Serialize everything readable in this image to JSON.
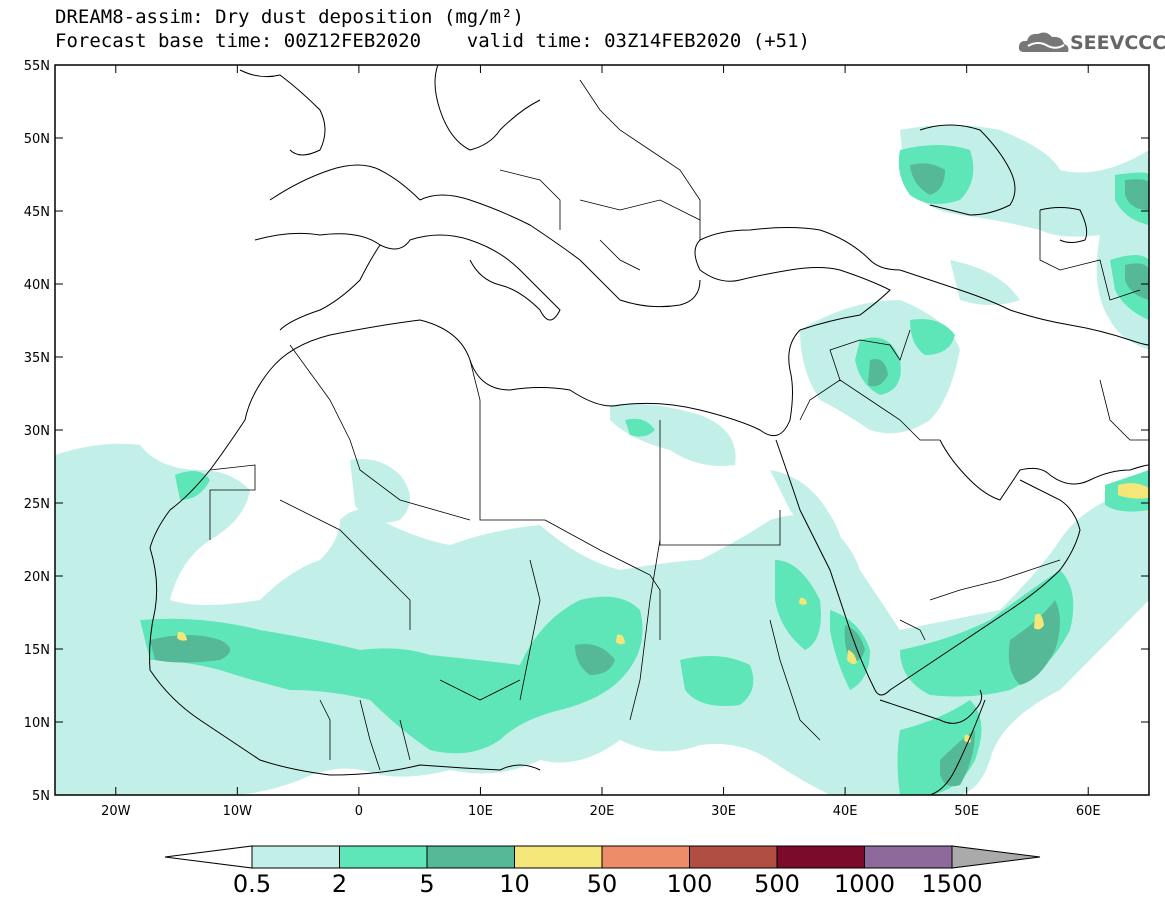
{
  "title_line1": "DREAM8-assim: Dry dust deposition (mg/m²)",
  "title_line2": "Forecast base time: 00Z12FEB2020    valid time: 03Z14FEB2020 (+51)",
  "logo": {
    "text": "SEEVCCC",
    "icon": "cloud-logo-icon"
  },
  "map": {
    "lon_range": [
      -25,
      65
    ],
    "lat_range": [
      5,
      55
    ],
    "lat_ticks": [
      "55N",
      "50N",
      "45N",
      "40N",
      "35N",
      "30N",
      "25N",
      "20N",
      "15N",
      "10N",
      "5N"
    ],
    "lon_ticks": [
      "20W",
      "10W",
      "0",
      "10E",
      "20E",
      "30E",
      "40E",
      "50E",
      "60E"
    ],
    "lat_values": [
      55,
      50,
      45,
      40,
      35,
      30,
      25,
      20,
      15,
      10,
      5
    ],
    "lon_values": [
      -20,
      -10,
      0,
      10,
      20,
      30,
      40,
      50,
      60
    ]
  },
  "colorbar": {
    "labels": [
      "0.5",
      "2",
      "5",
      "10",
      "50",
      "100",
      "500",
      "1000",
      "1500"
    ],
    "colors": [
      "#c2f0e8",
      "#5ee6b8",
      "#55b896",
      "#f5e67a",
      "#ec8c68",
      "#b14e44",
      "#7c0a2a",
      "#8e6a9c",
      "#aaaaaa"
    ]
  }
}
